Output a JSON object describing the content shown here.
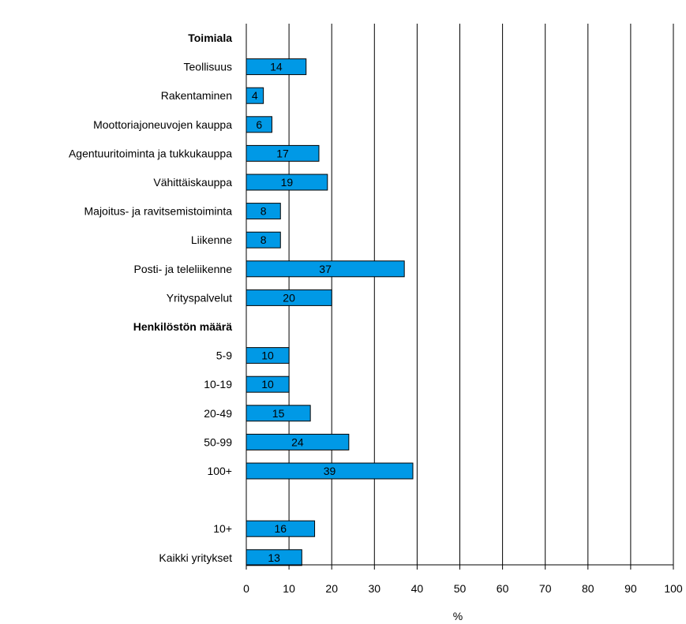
{
  "chart_data": {
    "type": "bar",
    "orientation": "horizontal",
    "title": "",
    "xlabel": "%",
    "ylabel": "",
    "xlim": [
      0,
      100
    ],
    "x_ticks": [
      0,
      10,
      20,
      30,
      40,
      50,
      60,
      70,
      80,
      90,
      100
    ],
    "grid": "vertical lines",
    "bar_color": "#0099e6",
    "rows": [
      {
        "type": "header",
        "label": "Toimiala"
      },
      {
        "type": "bar",
        "label": "Teollisuus",
        "value": 14
      },
      {
        "type": "bar",
        "label": "Rakentaminen",
        "value": 4
      },
      {
        "type": "bar",
        "label": "Moottoriajoneuvojen kauppa",
        "value": 6
      },
      {
        "type": "bar",
        "label": "Agentuuritoiminta ja tukkukauppa",
        "value": 17
      },
      {
        "type": "bar",
        "label": "Vähittäiskauppa",
        "value": 19
      },
      {
        "type": "bar",
        "label": "Majoitus- ja ravitsemistoiminta",
        "value": 8
      },
      {
        "type": "bar",
        "label": "Liikenne",
        "value": 8
      },
      {
        "type": "bar",
        "label": "Posti- ja teleliikenne",
        "value": 37
      },
      {
        "type": "bar",
        "label": "Yrityspalvelut",
        "value": 20
      },
      {
        "type": "header",
        "label": "Henkilöstön määrä"
      },
      {
        "type": "bar",
        "label": "5-9",
        "value": 10
      },
      {
        "type": "bar",
        "label": "10-19",
        "value": 10
      },
      {
        "type": "bar",
        "label": "20-49",
        "value": 15
      },
      {
        "type": "bar",
        "label": "50-99",
        "value": 24
      },
      {
        "type": "bar",
        "label": "100+",
        "value": 39
      },
      {
        "type": "spacer",
        "label": ""
      },
      {
        "type": "bar",
        "label": "10+",
        "value": 16
      },
      {
        "type": "bar",
        "label": "Kaikki yritykset",
        "value": 13
      }
    ]
  }
}
